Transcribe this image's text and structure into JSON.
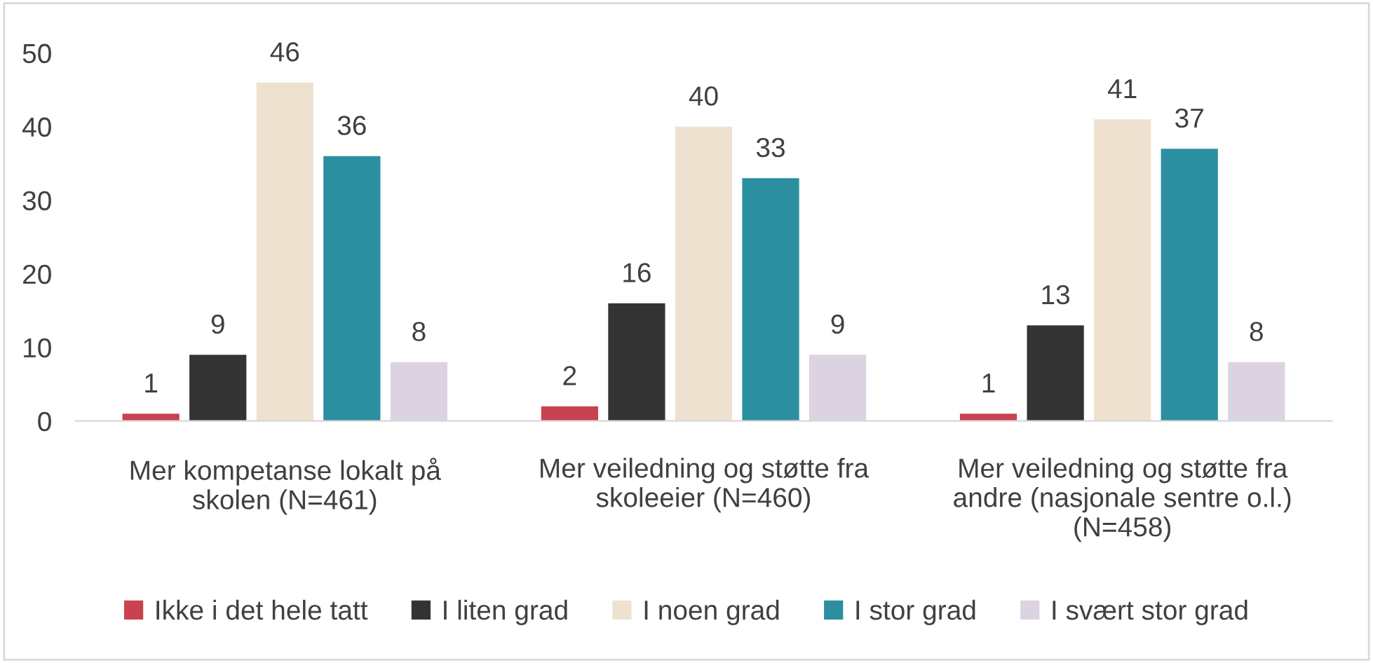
{
  "chart_data": {
    "type": "bar",
    "categories": [
      "Mer kompetanse lokalt på skolen (N=461)",
      "Mer veiledning og støtte fra skoleeier (N=460)",
      "Mer veiledning og støtte fra andre (nasjonale sentre o.l.) (N=458)"
    ],
    "series": [
      {
        "name": "Ikke i det hele tatt",
        "color": "#c8424f",
        "values": [
          1,
          2,
          1
        ]
      },
      {
        "name": "I liten grad",
        "color": "#333333",
        "values": [
          9,
          16,
          13
        ]
      },
      {
        "name": "I noen grad",
        "color": "#efe1d0",
        "values": [
          46,
          40,
          41
        ]
      },
      {
        "name": "I stor grad",
        "color": "#2b8f9f",
        "values": [
          36,
          33,
          37
        ]
      },
      {
        "name": "I svært stor grad",
        "color": "#dcd3e2",
        "values": [
          8,
          9,
          8
        ]
      }
    ],
    "ylim": [
      0,
      50
    ],
    "yticks": [
      0,
      10,
      20,
      30,
      40,
      50
    ],
    "data_labels": true,
    "grid": false,
    "legend": "bottom"
  }
}
